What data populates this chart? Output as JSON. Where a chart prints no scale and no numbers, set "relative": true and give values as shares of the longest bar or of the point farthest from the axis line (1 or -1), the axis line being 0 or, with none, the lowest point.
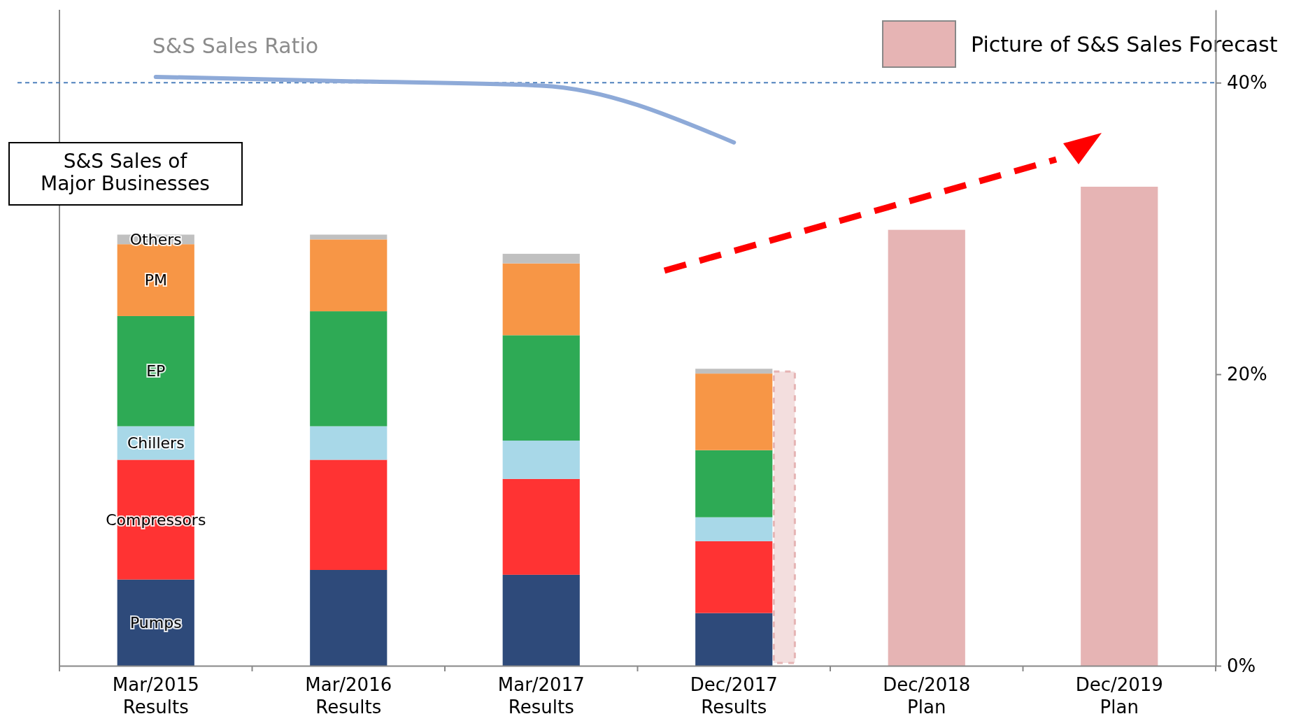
{
  "chart_data": [
    {
      "type": "bar",
      "stacked": true,
      "relative": true,
      "ylabel": "S&S Sales of\nMajor Businesses",
      "categories": [
        "Mar/2015\nResults",
        "Mar/2016\nResults",
        "Mar/2017\nResults",
        "Dec/2017\nResults",
        "Dec/2018\nPlan",
        "Dec/2019\nPlan"
      ],
      "series": [
        {
          "name": "Pumps",
          "color": "#2e4a7a",
          "values": [
            0.18,
            0.2,
            0.19,
            0.11,
            null,
            null
          ]
        },
        {
          "name": "Compressors",
          "color": "#ff3333",
          "values": [
            0.25,
            0.23,
            0.2,
            0.15,
            null,
            null
          ]
        },
        {
          "name": "Chillers",
          "color": "#a8d8e8",
          "values": [
            0.07,
            0.07,
            0.08,
            0.05,
            null,
            null
          ]
        },
        {
          "name": "EP",
          "color": "#2eaa55",
          "values": [
            0.23,
            0.24,
            0.22,
            0.14,
            null,
            null
          ]
        },
        {
          "name": "PM",
          "color": "#f79646",
          "values": [
            0.15,
            0.15,
            0.15,
            0.16,
            null,
            null
          ]
        },
        {
          "name": "Others",
          "color": "#c0c0c0",
          "values": [
            0.02,
            0.01,
            0.02,
            0.01,
            null,
            null
          ]
        },
        {
          "name": "Picture of S&S Sales Forecast",
          "color": "#e6b4b4",
          "values": [
            null,
            null,
            null,
            null,
            0.91,
            1.0
          ]
        }
      ],
      "legend": "top right"
    },
    {
      "type": "line",
      "tick_labels": "y",
      "categories": [
        null,
        null,
        null,
        null,
        null,
        null
      ],
      "series": [
        {
          "name": "S&S Sales Ratio",
          "color": "#8eaad8",
          "values": [
            40.4,
            40.1,
            39.8,
            35.9,
            null,
            null
          ]
        }
      ],
      "ylim": [
        0,
        45
      ],
      "yticks": [
        {
          "value": 0,
          "label": "0%"
        },
        {
          "value": 20,
          "label": "20%"
        },
        {
          "value": 40,
          "label": "40%"
        }
      ],
      "ref_lines": [
        {
          "axis": "y",
          "value": 40,
          "color": "#4f81bd",
          "line_style": "dashed"
        }
      ]
    }
  ]
}
